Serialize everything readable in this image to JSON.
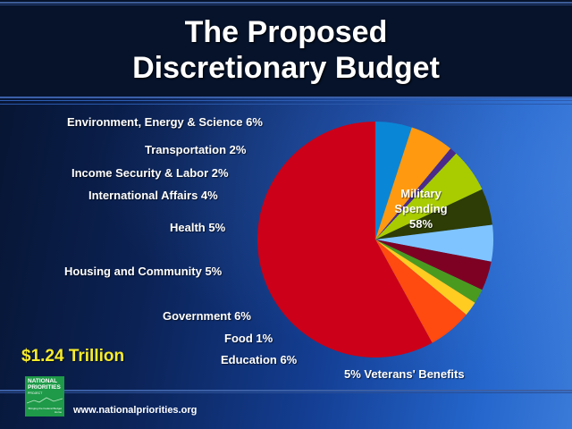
{
  "slide": {
    "title_line1": "The Proposed",
    "title_line2": "Discretionary Budget",
    "total": "$1.24 Trillion",
    "website": "www.nationalpriorities.org",
    "logo": {
      "line1": "NATIONAL",
      "line2": "PRIORITIES",
      "line3": "PROJECT",
      "tagline": "Bringing the Federal Budget Home"
    },
    "military_label_line1": "Military",
    "military_label_line2": "Spending",
    "military_label_line3": "58%"
  },
  "labels": {
    "environment": "Environment, Energy & Science  6%",
    "transportation": "Transportation  2%",
    "income_security": "Income Security & Labor  2%",
    "international": "International Affairs  4%",
    "health": "Health  5%",
    "housing": "Housing and Community  5%",
    "government": "Government  6%",
    "food": "Food  1%",
    "education": "Education  6%",
    "veterans": "5%  Veterans' Benefits"
  },
  "colors": {
    "title": "#ffffff",
    "total": "#f7ec2a",
    "header_bg": "#06132b"
  },
  "chart_data": {
    "type": "pie",
    "title": "The Proposed Discretionary Budget",
    "subtitle": "$1.24 Trillion",
    "start_angle": "12 o'clock, clockwise",
    "categories": [
      "Veterans' Benefits",
      "Education",
      "Food",
      "Government",
      "Housing and Community",
      "Health",
      "International Affairs",
      "Income Security & Labor",
      "Transportation",
      "Environment, Energy & Science",
      "Military Spending"
    ],
    "values": [
      5,
      6,
      1,
      6,
      5,
      5,
      4,
      2,
      2,
      6,
      58
    ],
    "colors": [
      "#0a86d6",
      "#ff9a10",
      "#4a2a8a",
      "#a8cc00",
      "#2e3d05",
      "#80c4ff",
      "#7e0022",
      "#4a9a20",
      "#ffcc22",
      "#ff4a10",
      "#cc0018"
    ],
    "unit": "%",
    "legend": "labels placed beside chart"
  }
}
